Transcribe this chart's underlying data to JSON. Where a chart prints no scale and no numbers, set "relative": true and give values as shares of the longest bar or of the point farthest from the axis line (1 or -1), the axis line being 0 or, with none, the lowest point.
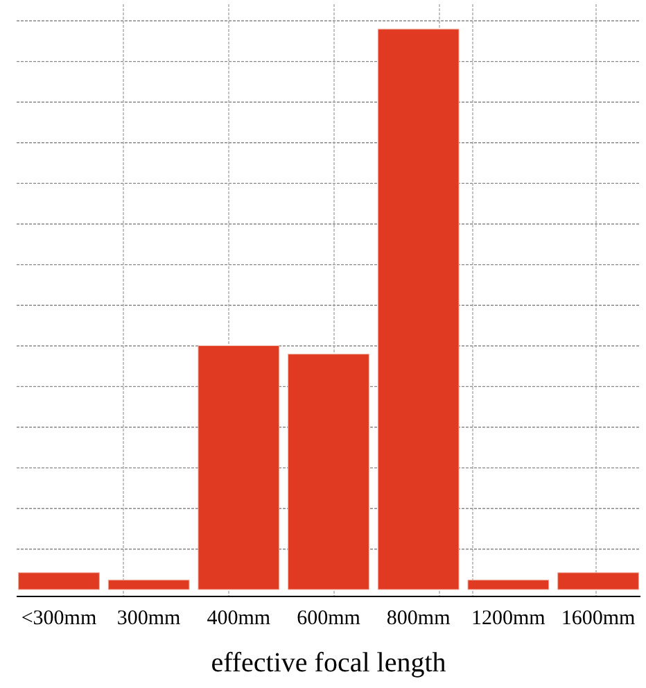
{
  "chart_data": {
    "type": "bar",
    "xlabel": "effective focal length",
    "categories": [
      "<300mm",
      "300mm",
      "400mm",
      "600mm",
      "800mm",
      "1200mm",
      "1600mm"
    ],
    "values": [
      0.03,
      0.017,
      0.435,
      0.42,
      1,
      0.017,
      0.03
    ],
    "color": "#e03a22",
    "relative": true,
    "grid": true
  }
}
